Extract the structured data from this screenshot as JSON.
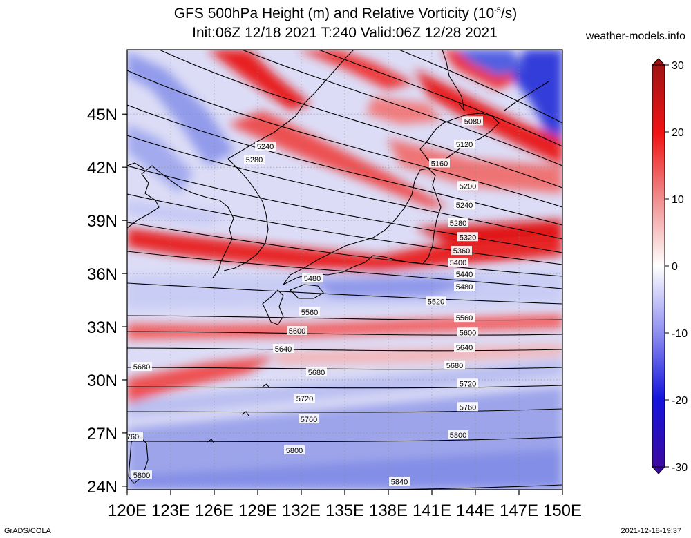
{
  "title": {
    "line1": "GFS 500hPa Height (m) and Relative Vorticity (10",
    "line1_sup": "-5",
    "line1_end": "/s)",
    "line2": "Init:06Z 12/18 2021 T:240 Valid:06Z 12/28 2021"
  },
  "site": "weather-models.info",
  "footer": {
    "left": "GrADS/COLA",
    "right": "2021-12-18-19:37"
  },
  "map": {
    "lon_labels": [
      "120E",
      "123E",
      "126E",
      "129E",
      "132E",
      "135E",
      "138E",
      "141E",
      "144E",
      "147E",
      "150E"
    ],
    "lat_labels": [
      "45N",
      "42N",
      "39N",
      "36N",
      "33N",
      "30N",
      "27N",
      "24N"
    ],
    "lat_values": [
      45,
      42,
      39,
      36,
      33,
      30,
      27,
      24
    ],
    "lon_values": [
      120,
      123,
      126,
      129,
      132,
      135,
      138,
      141,
      144,
      147,
      150
    ],
    "colors": {
      "positive": "#e8141e",
      "negative": "#1e28e6",
      "neutral": "#f2f2ff"
    }
  },
  "colorbar": {
    "ticks": [
      "30",
      "20",
      "10",
      "0",
      "-10",
      "-20",
      "-30"
    ],
    "values": [
      30,
      20,
      10,
      0,
      -10,
      -20,
      -30
    ]
  },
  "contours": [
    {
      "label": "5080"
    },
    {
      "label": "5120"
    },
    {
      "label": "5160"
    },
    {
      "label": "5200"
    },
    {
      "label": "5240"
    },
    {
      "label": "5280"
    },
    {
      "label": "5320"
    },
    {
      "label": "5360"
    },
    {
      "label": "5400"
    },
    {
      "label": "5440"
    },
    {
      "label": "5480"
    },
    {
      "label": "5520"
    },
    {
      "label": "5560"
    },
    {
      "label": "5600"
    },
    {
      "label": "5640"
    },
    {
      "label": "5680"
    },
    {
      "label": "5720"
    },
    {
      "label": "5760"
    },
    {
      "label": "5800"
    },
    {
      "label": "5840"
    }
  ],
  "extra_labels": [
    {
      "label": "5240"
    },
    {
      "label": "5280"
    },
    {
      "label": "5480"
    },
    {
      "label": "5560"
    },
    {
      "label": "5600"
    },
    {
      "label": "5640"
    },
    {
      "label": "5680"
    },
    {
      "label": "5680"
    },
    {
      "label": "5720"
    },
    {
      "label": "5760"
    },
    {
      "label": "760"
    },
    {
      "label": "5800"
    },
    {
      "label": "5800"
    }
  ]
}
